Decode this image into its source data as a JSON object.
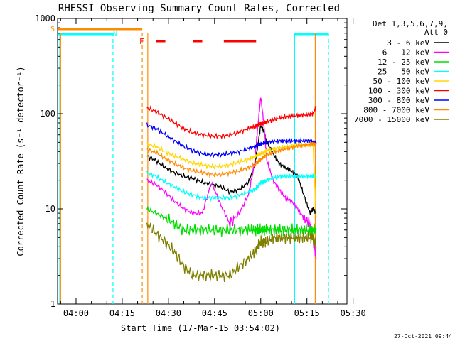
{
  "chart_data": {
    "type": "line",
    "title": "RHESSI Observing Summary Count Rates, Corrected",
    "ylabel": "Corrected Count Rate (s⁻¹ detector⁻¹)",
    "xlabel": "Start Time (17-Mar-15 03:54:02)",
    "yscale": "log",
    "ylim": [
      1,
      1000
    ],
    "xlim_minutes_after_0400": [
      -6,
      88
    ],
    "x_ticks": [
      "04:00",
      "04:15",
      "04:30",
      "04:45",
      "05:00",
      "05:15",
      "05:30"
    ],
    "y_ticks": [
      "1",
      "10",
      "100",
      "1000"
    ],
    "grid": false,
    "legend_position": "right",
    "legend_header": [
      "Det 1,3,5,6,7,9,",
      "Att 0"
    ],
    "flags": {
      "S": "S",
      "N": "N",
      "F": "F"
    },
    "time_minutes": [
      23,
      26,
      29,
      32,
      35,
      38,
      41,
      44,
      47,
      50,
      53,
      56,
      58,
      59,
      60,
      61,
      62,
      64,
      66,
      68,
      70,
      72,
      74,
      76,
      77,
      78
    ],
    "series": [
      {
        "name": "3 - 6 keV",
        "color": "#000000",
        "values": [
          36,
          32,
          27,
          24,
          22,
          21,
          19,
          18,
          17,
          15,
          16,
          19,
          28,
          45,
          75,
          65,
          50,
          38,
          30,
          27,
          25,
          22,
          14,
          9,
          10,
          9
        ]
      },
      {
        "name": "6 - 12 keV",
        "color": "#ff00ff",
        "values": [
          20,
          18,
          15,
          12,
          10,
          9,
          9,
          19,
          11,
          7,
          9,
          14,
          30,
          70,
          150,
          80,
          32,
          20,
          16,
          13,
          12,
          10,
          8,
          7,
          5,
          3
        ]
      },
      {
        "name": "12 - 25 keV",
        "color": "#00dd00",
        "values": [
          10,
          9,
          8,
          7,
          6,
          6,
          6,
          6,
          6,
          6,
          6,
          6,
          6,
          6,
          6,
          6,
          6,
          6,
          6,
          6,
          6,
          6,
          6,
          6,
          6,
          6
        ]
      },
      {
        "name": "25 - 50 keV",
        "color": "#00ffff",
        "values": [
          24,
          22,
          19,
          17,
          15,
          14,
          13,
          13,
          13,
          13,
          14,
          15,
          16,
          17,
          19,
          19,
          20,
          21,
          22,
          22,
          22,
          22,
          22,
          22,
          22,
          22
        ]
      },
      {
        "name": "50 - 100 keV",
        "color": "#ffd700",
        "values": [
          48,
          45,
          40,
          36,
          33,
          30,
          29,
          28,
          28,
          29,
          31,
          33,
          35,
          37,
          38,
          39,
          41,
          42,
          44,
          45,
          46,
          47,
          47,
          47,
          47,
          8
        ]
      },
      {
        "name": "100 - 300 keV",
        "color": "#ff0000",
        "values": [
          115,
          105,
          92,
          80,
          70,
          63,
          60,
          58,
          58,
          60,
          64,
          70,
          73,
          76,
          78,
          80,
          82,
          86,
          90,
          93,
          95,
          96,
          97,
          98,
          100,
          120
        ]
      },
      {
        "name": "300 - 800 keV",
        "color": "#0000ff",
        "values": [
          76,
          70,
          60,
          52,
          45,
          41,
          38,
          37,
          37,
          38,
          40,
          43,
          45,
          47,
          48,
          49,
          50,
          51,
          52,
          52,
          52,
          52,
          52,
          52,
          50,
          50
        ]
      },
      {
        "name": "800 - 7000 keV",
        "color": "#ff8c00",
        "values": [
          42,
          39,
          34,
          30,
          27,
          25,
          24,
          23,
          23,
          24,
          25,
          27,
          29,
          31,
          33,
          35,
          37,
          39,
          41,
          43,
          44,
          46,
          47,
          48,
          48,
          48
        ]
      },
      {
        "name": "7000 - 15000 keV",
        "color": "#808000",
        "values": [
          7,
          5.5,
          4.5,
          3.5,
          2.5,
          2,
          2,
          2,
          2,
          2,
          2.5,
          3,
          3.5,
          4,
          4.5,
          4.5,
          4.5,
          5,
          5,
          5,
          5,
          5,
          5,
          5,
          5,
          4
        ]
      }
    ]
  },
  "footer": {
    "date": "27-Oct-2021 09:44"
  }
}
